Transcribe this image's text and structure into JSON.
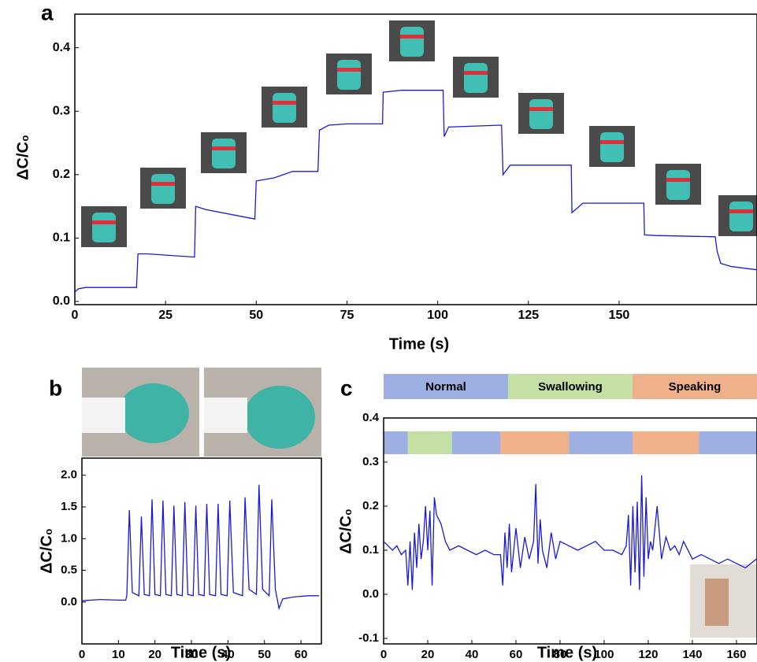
{
  "chart_data": [
    {
      "type": "line",
      "label": "a",
      "x_label": "Time (s)",
      "y_label": "ΔC/C₀",
      "xlim": [
        0,
        188
      ],
      "ylim": [
        -0.005,
        0.453
      ],
      "xticks": [
        0,
        25,
        50,
        75,
        100,
        125,
        150
      ],
      "yticks": [
        {
          "value": 0,
          "label": "0.0"
        },
        0.1,
        0.2,
        0.3,
        0.4
      ],
      "series": [
        {
          "color": "#1a1ad6",
          "x": [
            0,
            1,
            3,
            17,
            17.4,
            20,
            33,
            33.3,
            36,
            45,
            49.6,
            50,
            55,
            60,
            67,
            67.4,
            70,
            75,
            84.8,
            85,
            90,
            101.5,
            101.8,
            103,
            117.6,
            118,
            120,
            136.8,
            137,
            140,
            156.8,
            157,
            160,
            176.5,
            177,
            178,
            181,
            188
          ],
          "values": [
            0.015,
            0.02,
            0.022,
            0.022,
            0.075,
            0.075,
            0.07,
            0.15,
            0.145,
            0.135,
            0.13,
            0.19,
            0.195,
            0.205,
            0.205,
            0.27,
            0.278,
            0.28,
            0.28,
            0.33,
            0.333,
            0.333,
            0.26,
            0.275,
            0.278,
            0.2,
            0.215,
            0.215,
            0.14,
            0.155,
            0.155,
            0.105,
            0.104,
            0.102,
            0.08,
            0.06,
            0.055,
            0.05
          ]
        }
      ]
    },
    {
      "type": "line",
      "label": "b",
      "x_label": "Time (s)",
      "y_label": "ΔC/C₀",
      "xlim": [
        0,
        65.6
      ],
      "ylim": [
        -0.66,
        2.27
      ],
      "xticks": [
        0,
        10,
        20,
        30,
        40,
        50,
        60
      ],
      "yticks": [
        {
          "value": 0,
          "label": "0.0"
        },
        0.5,
        {
          "value": 1,
          "label": "1.0"
        },
        1.5,
        {
          "value": 2,
          "label": "2.0"
        }
      ],
      "series": [
        {
          "color": "#1a1ad6",
          "x": [
            0,
            5,
            10,
            12,
            12.3,
            13,
            13.8,
            15.6,
            16.3,
            17.1,
            18.5,
            19.2,
            20,
            21.5,
            22.2,
            23,
            24.5,
            25.2,
            26,
            27.5,
            28.2,
            29,
            30.5,
            31.2,
            32,
            33.5,
            34.2,
            35,
            36.6,
            37.3,
            38.1,
            39.8,
            40.5,
            41.5,
            44,
            44.7,
            45.8,
            47.8,
            48.5,
            49.5,
            51.3,
            52,
            53,
            54,
            55,
            58,
            62,
            65
          ],
          "values": [
            0.02,
            0.04,
            0.03,
            0.03,
            0.1,
            1.45,
            0.15,
            0.1,
            1.35,
            0.12,
            0.1,
            1.62,
            0.12,
            0.1,
            1.6,
            0.12,
            0.1,
            1.52,
            0.12,
            0.1,
            1.58,
            0.12,
            0.1,
            1.52,
            0.12,
            0.1,
            1.55,
            0.12,
            0.1,
            1.55,
            0.12,
            0.1,
            1.6,
            0.15,
            0.1,
            1.65,
            0.2,
            0.12,
            1.85,
            0.2,
            0.1,
            1.62,
            0.2,
            -0.1,
            0.05,
            0.08,
            0.1,
            0.1
          ]
        }
      ]
    },
    {
      "type": "line",
      "label": "c",
      "x_label": "Time (s)",
      "y_label": "ΔC/C₀",
      "xlim": [
        0,
        169.3
      ],
      "ylim": [
        -0.1125,
        0.4
      ],
      "xticks": [
        0,
        20,
        40,
        60,
        80,
        100,
        120,
        140,
        160
      ],
      "yticks": [
        -0.1,
        {
          "value": 0,
          "label": "0.0"
        },
        0.1,
        0.2,
        0.3,
        0.4
      ],
      "legend": [
        {
          "name": "Normal",
          "color": "#9daee0"
        },
        {
          "name": "Swallowing",
          "color": "#c5e0a5"
        },
        {
          "name": "Speaking",
          "color": "#f0b08a"
        }
      ],
      "phases": [
        {
          "start": 0,
          "end": 11,
          "color": "#9daee0"
        },
        {
          "start": 11,
          "end": 31,
          "color": "#c5e0a5"
        },
        {
          "start": 31,
          "end": 53,
          "color": "#9daee0"
        },
        {
          "start": 53,
          "end": 84,
          "color": "#f0b08a"
        },
        {
          "start": 84,
          "end": 113,
          "color": "#9daee0"
        },
        {
          "start": 113,
          "end": 143,
          "color": "#f0b08a"
        },
        {
          "start": 143,
          "end": 169.3,
          "color": "#9daee0"
        }
      ],
      "series": [
        {
          "color": "#1a1ad6",
          "x": [
            0,
            2,
            4,
            6,
            8,
            10,
            11,
            12,
            13,
            14,
            15,
            16,
            17,
            18,
            19,
            20,
            21,
            22,
            23,
            24,
            26,
            28,
            30,
            34,
            38,
            42,
            46,
            50,
            53,
            54,
            55,
            56,
            57,
            58,
            60,
            62,
            64,
            66,
            68,
            69,
            70,
            71,
            72,
            74,
            76,
            78,
            80,
            84,
            88,
            92,
            96,
            100,
            104,
            108,
            110,
            111,
            112,
            113,
            114,
            115,
            116,
            117,
            118,
            119,
            120,
            121,
            122,
            124,
            126,
            128,
            130,
            132,
            134,
            136,
            140,
            144,
            148,
            152,
            156,
            160,
            164,
            169
          ],
          "values": [
            0.12,
            0.11,
            0.1,
            0.11,
            0.09,
            0.1,
            0.02,
            0.12,
            0.01,
            0.14,
            0.06,
            0.16,
            0.08,
            0.12,
            0.2,
            0.1,
            0.19,
            0.02,
            0.22,
            0.18,
            0.16,
            0.12,
            0.1,
            0.11,
            0.1,
            0.09,
            0.1,
            0.09,
            0.09,
            0.02,
            0.14,
            0.06,
            0.16,
            0.05,
            0.15,
            0.06,
            0.13,
            0.08,
            0.12,
            0.25,
            0.07,
            0.17,
            0.1,
            0.06,
            0.14,
            0.08,
            0.12,
            0.11,
            0.1,
            0.11,
            0.12,
            0.1,
            0.1,
            0.09,
            0.11,
            0.18,
            0.02,
            0.2,
            0.05,
            0.21,
            0.01,
            0.27,
            0.04,
            0.22,
            0.08,
            0.12,
            0.1,
            0.2,
            0.08,
            0.13,
            0.1,
            0.11,
            0.09,
            0.12,
            0.08,
            0.09,
            0.08,
            0.07,
            0.08,
            0.07,
            0.06,
            0.08
          ]
        }
      ]
    }
  ]
}
